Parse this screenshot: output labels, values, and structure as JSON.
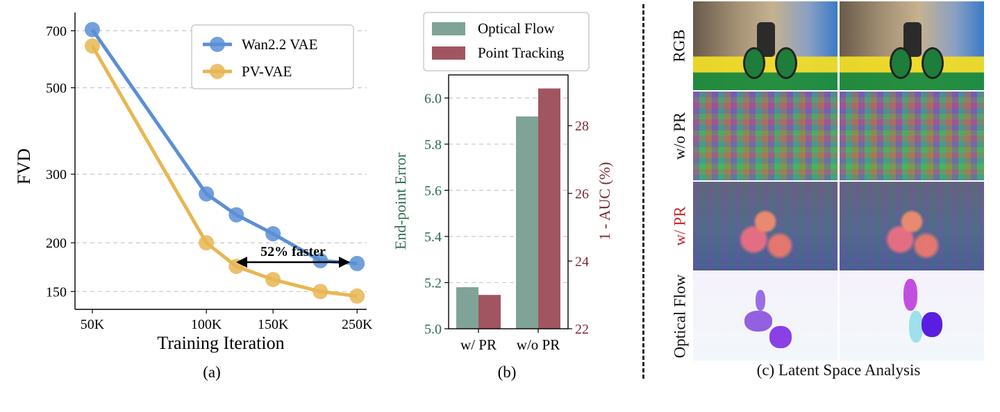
{
  "panel_a": {
    "caption": "(a)",
    "annotation": "52% faster",
    "colors": {
      "wan": "#5b8fd6",
      "pv": "#e8b652"
    }
  },
  "panel_b": {
    "caption": "(b)",
    "colors": {
      "flow": "#7fa396",
      "tracking": "#a05560",
      "ylabel_left": "#2e6b4f",
      "ylabel_right": "#7a2a35"
    }
  },
  "panel_c": {
    "caption": "(c) Latent Space Analysis",
    "rows": [
      "RGB",
      "w/o PR",
      "w/ PR",
      "Optical Flow"
    ],
    "highlight_row_color": "#c0282a"
  },
  "chart_data": [
    {
      "type": "line",
      "xlabel": "Training Iteration",
      "ylabel": "FVD",
      "x_scale": "log",
      "y_scale": "log",
      "xticks": [
        "50K",
        "100K",
        "150K",
        "250K"
      ],
      "yticks": [
        "150",
        "200",
        "300",
        "500",
        "700"
      ],
      "xlim": [
        45000,
        265000
      ],
      "ylim": [
        135,
        780
      ],
      "grid": "horizontal dashed",
      "legend_position": "top-right",
      "series": [
        {
          "name": "Wan2.2 VAE",
          "x": [
            50000,
            100000,
            120000,
            150000,
            200000,
            250000
          ],
          "y": [
            705,
            267,
            236,
            211,
            180,
            177
          ]
        },
        {
          "name": "PV-VAE",
          "x": [
            50000,
            100000,
            120000,
            150000,
            200000,
            250000
          ],
          "y": [
            640,
            200,
            174,
            161,
            150,
            146
          ]
        }
      ]
    },
    {
      "type": "bar",
      "categories": [
        "w/ PR",
        "w/o PR"
      ],
      "ylabel_left": "End-point Error",
      "ylabel_right": "1 - AUC (%)",
      "ylim_left": [
        5.0,
        6.1
      ],
      "ylim_right": [
        22,
        29.5
      ],
      "yticks_left": [
        "5.0",
        "5.2",
        "5.4",
        "5.6",
        "5.8",
        "6.0"
      ],
      "yticks_right": [
        "22",
        "24",
        "26",
        "28"
      ],
      "grid": "horizontal dashed",
      "legend_position": "top, outside",
      "series": [
        {
          "name": "Optical Flow",
          "axis": "left",
          "values": [
            5.18,
            5.92
          ]
        },
        {
          "name": "Point Tracking",
          "axis": "right",
          "values": [
            23.0,
            29.1
          ]
        }
      ]
    }
  ]
}
